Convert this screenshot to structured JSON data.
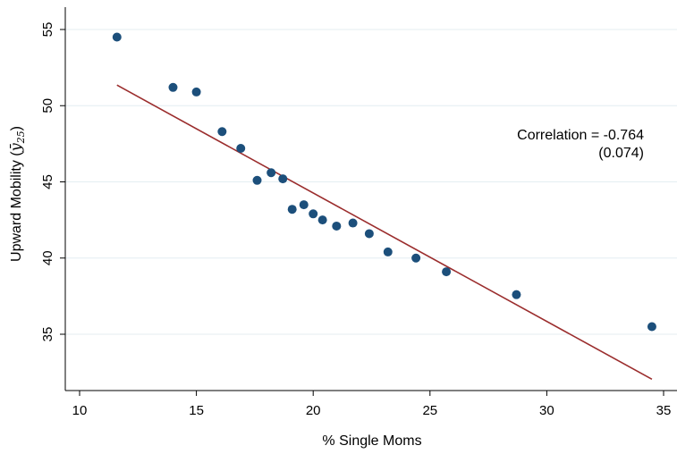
{
  "chart_data": {
    "type": "scatter",
    "title": "",
    "xlabel": "% Single Moms",
    "ylabel_text": "Upward Mobility (",
    "ylabel_symbol": "ȳ",
    "ylabel_subscript": "25",
    "ylabel_close": ")",
    "xlim": [
      10,
      35
    ],
    "ylim": [
      31,
      55.5
    ],
    "xticks": [
      "10",
      "15",
      "20",
      "25",
      "30",
      "35"
    ],
    "yticks": [
      "35",
      "40",
      "45",
      "50",
      "55"
    ],
    "grid": true,
    "points": [
      {
        "x": 11.6,
        "y": 54.5
      },
      {
        "x": 14.0,
        "y": 51.2
      },
      {
        "x": 15.0,
        "y": 50.9
      },
      {
        "x": 16.1,
        "y": 48.3
      },
      {
        "x": 16.9,
        "y": 47.2
      },
      {
        "x": 17.6,
        "y": 45.1
      },
      {
        "x": 18.2,
        "y": 45.6
      },
      {
        "x": 18.7,
        "y": 45.2
      },
      {
        "x": 19.1,
        "y": 43.2
      },
      {
        "x": 19.6,
        "y": 43.5
      },
      {
        "x": 20.0,
        "y": 42.9
      },
      {
        "x": 20.4,
        "y": 42.5
      },
      {
        "x": 21.0,
        "y": 42.1
      },
      {
        "x": 21.7,
        "y": 42.3
      },
      {
        "x": 22.4,
        "y": 41.6
      },
      {
        "x": 23.2,
        "y": 40.4
      },
      {
        "x": 24.4,
        "y": 40.0
      },
      {
        "x": 25.7,
        "y": 39.1
      },
      {
        "x": 28.7,
        "y": 37.6
      },
      {
        "x": 34.5,
        "y": 35.5
      }
    ],
    "fit_line": {
      "x1": 11.6,
      "y1": 51.35,
      "x2": 34.5,
      "y2": 32.05
    },
    "annotation": {
      "line1": "Correlation = -0.764",
      "line2": "(0.074)"
    },
    "colors": {
      "points": "#1c4f7b",
      "fit_line": "#9b2d2d",
      "grid": "#e4eef2"
    }
  }
}
